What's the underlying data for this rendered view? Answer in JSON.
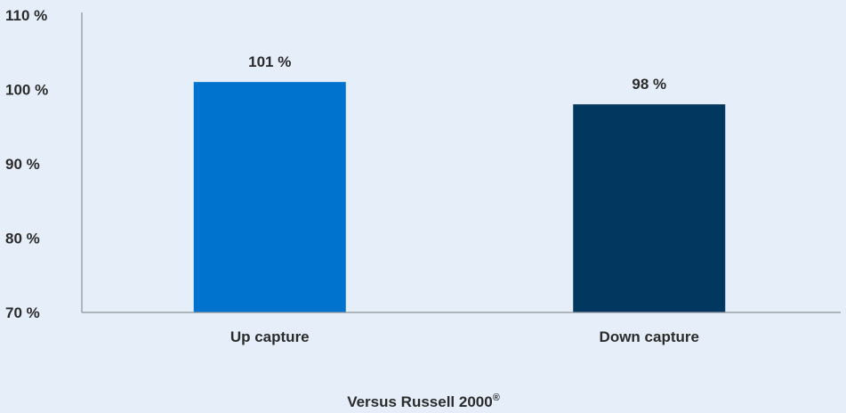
{
  "chart_data": {
    "type": "bar",
    "categories": [
      "Up capture",
      "Down capture"
    ],
    "values": [
      101,
      98
    ],
    "data_labels": [
      "101 %",
      "98 %"
    ],
    "colors": [
      "#0073cf",
      "#02375f"
    ],
    "ylim": [
      70,
      110
    ],
    "yticks": [
      70,
      80,
      90,
      100,
      110
    ],
    "ytick_labels": [
      "70 %",
      "80 %",
      "90 %",
      "100 %",
      "110 %"
    ],
    "grid": false,
    "xlabel": "",
    "ylabel": "",
    "caption": {
      "text": "Versus Russell 2000",
      "superscript": "®"
    },
    "axis_color": "#8a9099",
    "background": "#e6eff9"
  }
}
